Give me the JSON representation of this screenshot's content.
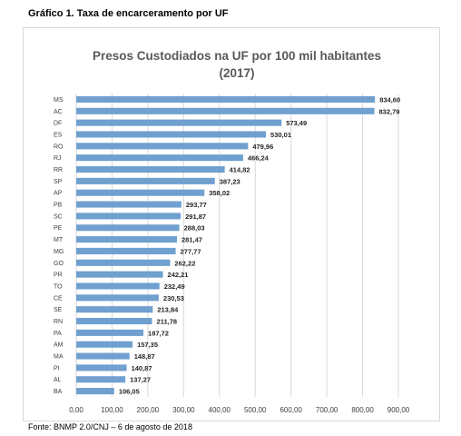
{
  "caption": "Gráfico 1. Taxa de encarceramento por UF",
  "source": "Fonte: BNMP 2.0/CNJ – 6 de agosto de 2018",
  "colors": {
    "bar": "#6fa0cf",
    "grid": "#d9d9d9",
    "title": "#595959",
    "tick": "#404040"
  },
  "chart_data": {
    "type": "bar",
    "orientation": "horizontal",
    "title": "Presos Custodiados na UF por 100 mil habitantes",
    "subtitle": "(2017)",
    "xlim": [
      0,
      900
    ],
    "x_ticks": [
      "0,00",
      "100,00",
      "200,00",
      "300,00",
      "400,00",
      "500,00",
      "600,00",
      "700,00",
      "800,00",
      "900,00"
    ],
    "grid": true,
    "categories": [
      "MS",
      "AC",
      "DF",
      "ES",
      "RO",
      "RJ",
      "RR",
      "SP",
      "AP",
      "PB",
      "SC",
      "PE",
      "MT",
      "MG",
      "GO",
      "PR",
      "TO",
      "CE",
      "SE",
      "RN",
      "PA",
      "AM",
      "MA",
      "PI",
      "AL",
      "BA"
    ],
    "values": [
      834.6,
      832.79,
      573.49,
      530.01,
      479.96,
      466.24,
      414.82,
      387.23,
      358.02,
      293.77,
      291.87,
      288.03,
      281.47,
      277.77,
      262.22,
      242.21,
      232.49,
      230.53,
      213.84,
      211.78,
      187.72,
      157.35,
      148.87,
      140.87,
      137.27,
      106.05
    ],
    "value_labels": [
      "834,60",
      "832,79",
      "573,49",
      "530,01",
      "479,96",
      "466,24",
      "414,82",
      "387,23",
      "358,02",
      "293,77",
      "291,87",
      "288,03",
      "281,47",
      "277,77",
      "262,22",
      "242,21",
      "232,49",
      "230,53",
      "213,84",
      "211,78",
      "187,72",
      "157,35",
      "148,87",
      "140,87",
      "137,27",
      "106,05"
    ]
  }
}
